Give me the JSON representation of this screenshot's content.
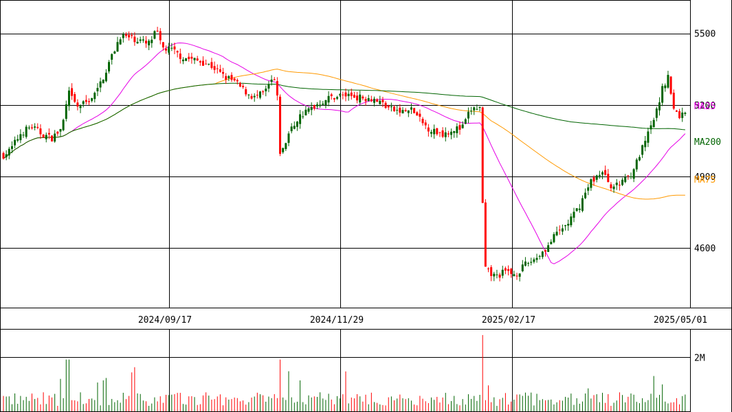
{
  "chart_data": {
    "type": "candlestick",
    "price_axis": {
      "ticks": [
        {
          "value": 5500,
          "label": "5500"
        },
        {
          "value": 5200,
          "label": "5200"
        },
        {
          "value": 4900,
          "label": "4900"
        },
        {
          "value": 4600,
          "label": "4600"
        }
      ],
      "range": [
        4350,
        5640
      ]
    },
    "date_ticks": [
      {
        "label": "2024/09/17"
      },
      {
        "label": "2024/11/29"
      },
      {
        "label": "2025/02/17"
      },
      {
        "label": "2025/05/01"
      }
    ],
    "moving_averages": [
      {
        "name": "MA25",
        "color": "#e600e6",
        "label": "MA25"
      },
      {
        "name": "MA75",
        "color": "#ff9900",
        "label": "MA75"
      },
      {
        "name": "MA200",
        "color": "#006400",
        "label": "MA200"
      }
    ],
    "volume_axis": {
      "ticks": [
        {
          "value": 2000000,
          "label": "2M"
        }
      ],
      "range": [
        0,
        3000000
      ]
    },
    "colors": {
      "up": "#006400",
      "down": "#ff0000",
      "grid": "#000000"
    }
  }
}
